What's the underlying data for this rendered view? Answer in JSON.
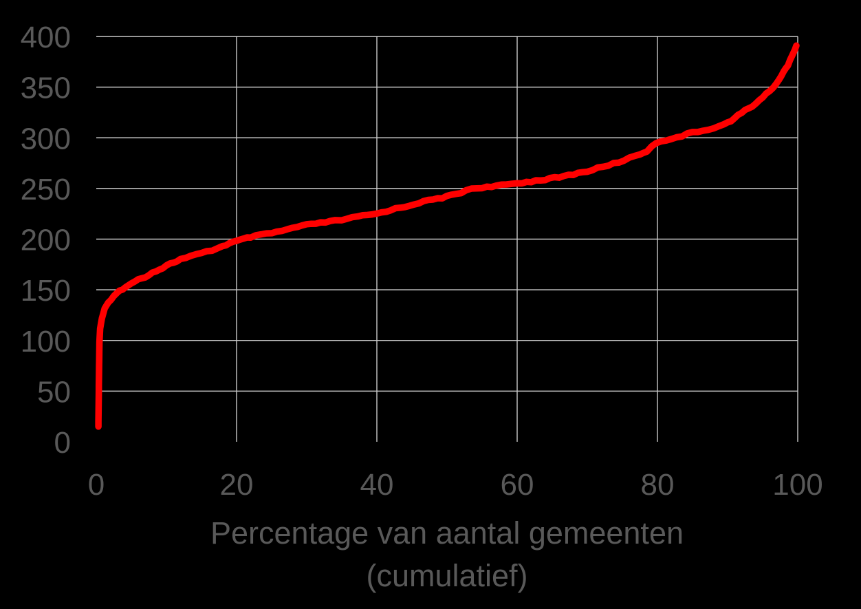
{
  "chart_data": {
    "type": "line",
    "title": "",
    "xlabel": "Percentage van aantal gemeenten (cumulatief)",
    "xlabel_lines": [
      "Percentage van aantal gemeenten",
      "(cumulatief)"
    ],
    "ylabel": "",
    "xlim": [
      0,
      100
    ],
    "ylim": [
      0,
      400
    ],
    "x_ticks": [
      0,
      20,
      40,
      60,
      80,
      100
    ],
    "y_ticks": [
      0,
      50,
      100,
      150,
      200,
      250,
      300,
      350,
      400
    ],
    "grid": true,
    "grid_skip_zero": true,
    "legend": false,
    "colors": {
      "background": "#000000",
      "gridline": "#c9c9c9",
      "text": "#595959",
      "line": "#ff0000"
    },
    "series": [
      {
        "name": "cumulatieve curve",
        "color": "#ff0000",
        "points": [
          [
            0.3,
            15
          ],
          [
            0.35,
            45
          ],
          [
            0.4,
            75
          ],
          [
            0.45,
            98
          ],
          [
            0.55,
            112
          ],
          [
            0.8,
            122
          ],
          [
            1.2,
            131
          ],
          [
            1.7,
            137
          ],
          [
            2.5,
            143
          ],
          [
            3.3,
            149
          ],
          [
            4.2,
            153
          ],
          [
            5,
            156
          ],
          [
            6,
            160
          ],
          [
            7,
            163
          ],
          [
            8,
            167
          ],
          [
            9,
            170
          ],
          [
            10,
            174
          ],
          [
            11,
            177
          ],
          [
            12,
            180
          ],
          [
            13.5,
            183
          ],
          [
            15,
            186
          ],
          [
            16.5,
            189
          ],
          [
            18,
            193
          ],
          [
            19,
            196
          ],
          [
            20,
            198
          ],
          [
            21,
            200
          ],
          [
            22,
            202
          ],
          [
            23.5,
            204
          ],
          [
            25,
            206
          ],
          [
            26.5,
            208
          ],
          [
            28,
            211
          ],
          [
            30,
            214
          ],
          [
            32,
            216
          ],
          [
            34,
            218
          ],
          [
            35,
            219
          ],
          [
            36.5,
            221
          ],
          [
            38,
            223
          ],
          [
            40,
            225
          ],
          [
            42,
            229
          ],
          [
            44,
            232
          ],
          [
            46,
            236
          ],
          [
            48,
            239
          ],
          [
            50,
            242
          ],
          [
            52,
            246
          ],
          [
            53.5,
            250
          ],
          [
            55,
            251
          ],
          [
            57,
            252
          ],
          [
            58.5,
            254
          ],
          [
            60,
            255
          ],
          [
            62,
            257
          ],
          [
            64,
            259
          ],
          [
            66,
            261
          ],
          [
            68,
            264
          ],
          [
            70,
            267
          ],
          [
            71.5,
            270
          ],
          [
            73,
            273
          ],
          [
            74.5,
            276
          ],
          [
            76,
            280
          ],
          [
            77.5,
            284
          ],
          [
            78.5,
            287
          ],
          [
            79.2,
            291
          ],
          [
            79.8,
            295
          ],
          [
            80.5,
            297
          ],
          [
            82,
            299
          ],
          [
            83.5,
            302
          ],
          [
            85,
            305
          ],
          [
            86.5,
            307
          ],
          [
            88,
            310
          ],
          [
            89.5,
            313
          ],
          [
            90.5,
            317
          ],
          [
            91.5,
            322
          ],
          [
            92.5,
            327
          ],
          [
            93.5,
            331
          ],
          [
            94.5,
            337
          ],
          [
            95.5,
            343
          ],
          [
            96.5,
            350
          ],
          [
            97.3,
            357
          ],
          [
            98,
            365
          ],
          [
            98.6,
            372
          ],
          [
            99.2,
            381
          ],
          [
            99.6,
            387
          ],
          [
            99.8,
            391
          ]
        ]
      }
    ]
  }
}
